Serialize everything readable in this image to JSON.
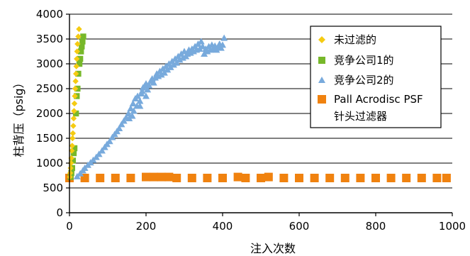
{
  "chart_data": {
    "type": "scatter",
    "title": "",
    "xlabel": "注入次数",
    "ylabel": "柱背压（psig）",
    "xlim": [
      0,
      1000
    ],
    "ylim": [
      0,
      4000
    ],
    "x_ticks": [
      0,
      200,
      400,
      600,
      800,
      1000
    ],
    "y_ticks": [
      0,
      500,
      1000,
      1500,
      2000,
      2500,
      3000,
      3500,
      4000
    ],
    "grid": "horizontal",
    "legend_position": "top-right",
    "series": [
      {
        "name": "未过滤的",
        "marker": "diamond",
        "color": "#f5cb12",
        "points": [
          [
            1,
            720
          ],
          [
            2,
            800
          ],
          [
            3,
            900
          ],
          [
            4,
            1000
          ],
          [
            5,
            1100
          ],
          [
            6,
            1250
          ],
          [
            7,
            1350
          ],
          [
            8,
            1500
          ],
          [
            9,
            1600
          ],
          [
            10,
            1750
          ],
          [
            11,
            1900
          ],
          [
            12,
            2050
          ],
          [
            13,
            2200
          ],
          [
            14,
            2350
          ],
          [
            15,
            2500
          ],
          [
            16,
            2650
          ],
          [
            17,
            2800
          ],
          [
            18,
            2950
          ],
          [
            19,
            3100
          ],
          [
            20,
            3250
          ],
          [
            21,
            3400
          ],
          [
            23,
            3550
          ],
          [
            25,
            3700
          ]
        ]
      },
      {
        "name": "竞争公司1的",
        "marker": "square",
        "color": "#77b82a",
        "points": [
          [
            3,
            720
          ],
          [
            5,
            800
          ],
          [
            7,
            900
          ],
          [
            9,
            1050
          ],
          [
            11,
            1200
          ],
          [
            13,
            1300
          ],
          [
            17,
            2000
          ],
          [
            19,
            2350
          ],
          [
            21,
            2500
          ],
          [
            23,
            2800
          ],
          [
            26,
            3000
          ],
          [
            28,
            3100
          ],
          [
            30,
            3250
          ],
          [
            32,
            3350
          ],
          [
            34,
            3450
          ],
          [
            36,
            3550
          ]
        ]
      },
      {
        "name": "竞争公司2的",
        "marker": "triangle",
        "color": "#78aadc",
        "points": [
          [
            20,
            730
          ],
          [
            28,
            790
          ],
          [
            35,
            850
          ],
          [
            40,
            900
          ],
          [
            48,
            960
          ],
          [
            55,
            1010
          ],
          [
            62,
            1060
          ],
          [
            70,
            1120
          ],
          [
            77,
            1180
          ],
          [
            85,
            1250
          ],
          [
            92,
            1320
          ],
          [
            98,
            1380
          ],
          [
            105,
            1440
          ],
          [
            112,
            1520
          ],
          [
            118,
            1580
          ],
          [
            124,
            1640
          ],
          [
            130,
            1700
          ],
          [
            136,
            1780
          ],
          [
            142,
            1850
          ],
          [
            148,
            1920
          ],
          [
            154,
            2000
          ],
          [
            160,
            2100
          ],
          [
            166,
            2200
          ],
          [
            172,
            2300
          ],
          [
            178,
            2350
          ],
          [
            184,
            2250
          ],
          [
            188,
            2400
          ],
          [
            190,
            2450
          ],
          [
            192,
            2520
          ],
          [
            196,
            2550
          ],
          [
            200,
            2600
          ],
          [
            204,
            2480
          ],
          [
            208,
            2560
          ],
          [
            212,
            2650
          ],
          [
            216,
            2700
          ],
          [
            220,
            2620
          ],
          [
            224,
            2720
          ],
          [
            228,
            2800
          ],
          [
            232,
            2750
          ],
          [
            236,
            2850
          ],
          [
            240,
            2780
          ],
          [
            244,
            2900
          ],
          [
            248,
            2820
          ],
          [
            252,
            2950
          ],
          [
            256,
            2880
          ],
          [
            260,
            3000
          ],
          [
            264,
            2930
          ],
          [
            268,
            3050
          ],
          [
            272,
            2980
          ],
          [
            276,
            3100
          ],
          [
            280,
            3020
          ],
          [
            284,
            3150
          ],
          [
            288,
            3080
          ],
          [
            292,
            3200
          ],
          [
            296,
            3120
          ],
          [
            300,
            3250
          ],
          [
            304,
            3150
          ],
          [
            308,
            3200
          ],
          [
            312,
            3280
          ],
          [
            316,
            3220
          ],
          [
            320,
            3300
          ],
          [
            324,
            3250
          ],
          [
            328,
            3350
          ],
          [
            332,
            3280
          ],
          [
            336,
            3400
          ],
          [
            340,
            3300
          ],
          [
            344,
            3450
          ],
          [
            348,
            3350
          ],
          [
            352,
            3200
          ],
          [
            356,
            3300
          ],
          [
            360,
            3250
          ],
          [
            364,
            3350
          ],
          [
            368,
            3280
          ],
          [
            372,
            3380
          ],
          [
            376,
            3300
          ],
          [
            380,
            3360
          ],
          [
            384,
            3280
          ],
          [
            388,
            3340
          ],
          [
            392,
            3400
          ],
          [
            396,
            3320
          ],
          [
            400,
            3380
          ],
          [
            404,
            3520
          ],
          [
            200,
            2350
          ],
          [
            184,
            2150
          ],
          [
            176,
            2150
          ],
          [
            168,
            2050
          ],
          [
            164,
            1950
          ],
          [
            156,
            1900
          ]
        ]
      },
      {
        "name": "Pall Acrodisc PSF 针头过滤器",
        "marker": "square",
        "color": "#f0820f",
        "points": [
          [
            0,
            700
          ],
          [
            40,
            700
          ],
          [
            80,
            700
          ],
          [
            120,
            700
          ],
          [
            160,
            700
          ],
          [
            200,
            720
          ],
          [
            220,
            720
          ],
          [
            240,
            720
          ],
          [
            260,
            720
          ],
          [
            280,
            700
          ],
          [
            320,
            700
          ],
          [
            360,
            700
          ],
          [
            400,
            700
          ],
          [
            440,
            720
          ],
          [
            460,
            700
          ],
          [
            500,
            700
          ],
          [
            520,
            720
          ],
          [
            560,
            700
          ],
          [
            600,
            700
          ],
          [
            640,
            700
          ],
          [
            680,
            700
          ],
          [
            720,
            700
          ],
          [
            760,
            700
          ],
          [
            800,
            700
          ],
          [
            840,
            700
          ],
          [
            880,
            700
          ],
          [
            920,
            700
          ],
          [
            960,
            700
          ],
          [
            985,
            700
          ]
        ]
      }
    ]
  }
}
